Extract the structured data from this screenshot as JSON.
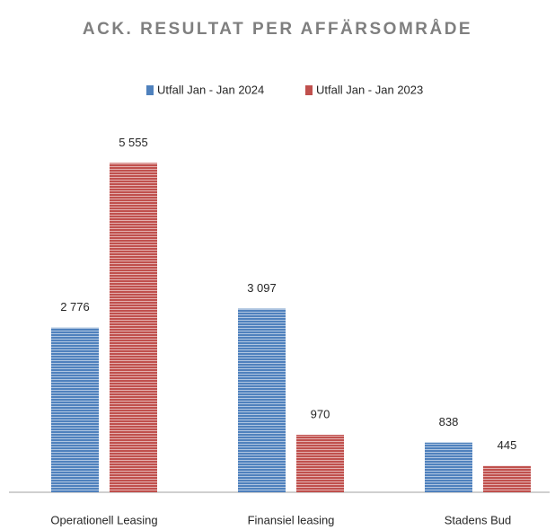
{
  "chart_data": {
    "type": "bar",
    "title": "ACK. RESULTAT PER AFFÄRSOMRÅDE",
    "categories": [
      "Operationell Leasing",
      "Finansiel leasing",
      "Stadens Bud"
    ],
    "series": [
      {
        "name": "Utfall Jan - Jan 2024",
        "color": "#4f81bd",
        "values": [
          2776,
          3097,
          838
        ],
        "value_labels": [
          "2 776",
          "3 097",
          "838"
        ]
      },
      {
        "name": "Utfall Jan - Jan 2023",
        "color": "#c0504d",
        "values": [
          5555,
          970,
          445
        ],
        "value_labels": [
          "5 555",
          "970",
          "445"
        ]
      }
    ]
  }
}
